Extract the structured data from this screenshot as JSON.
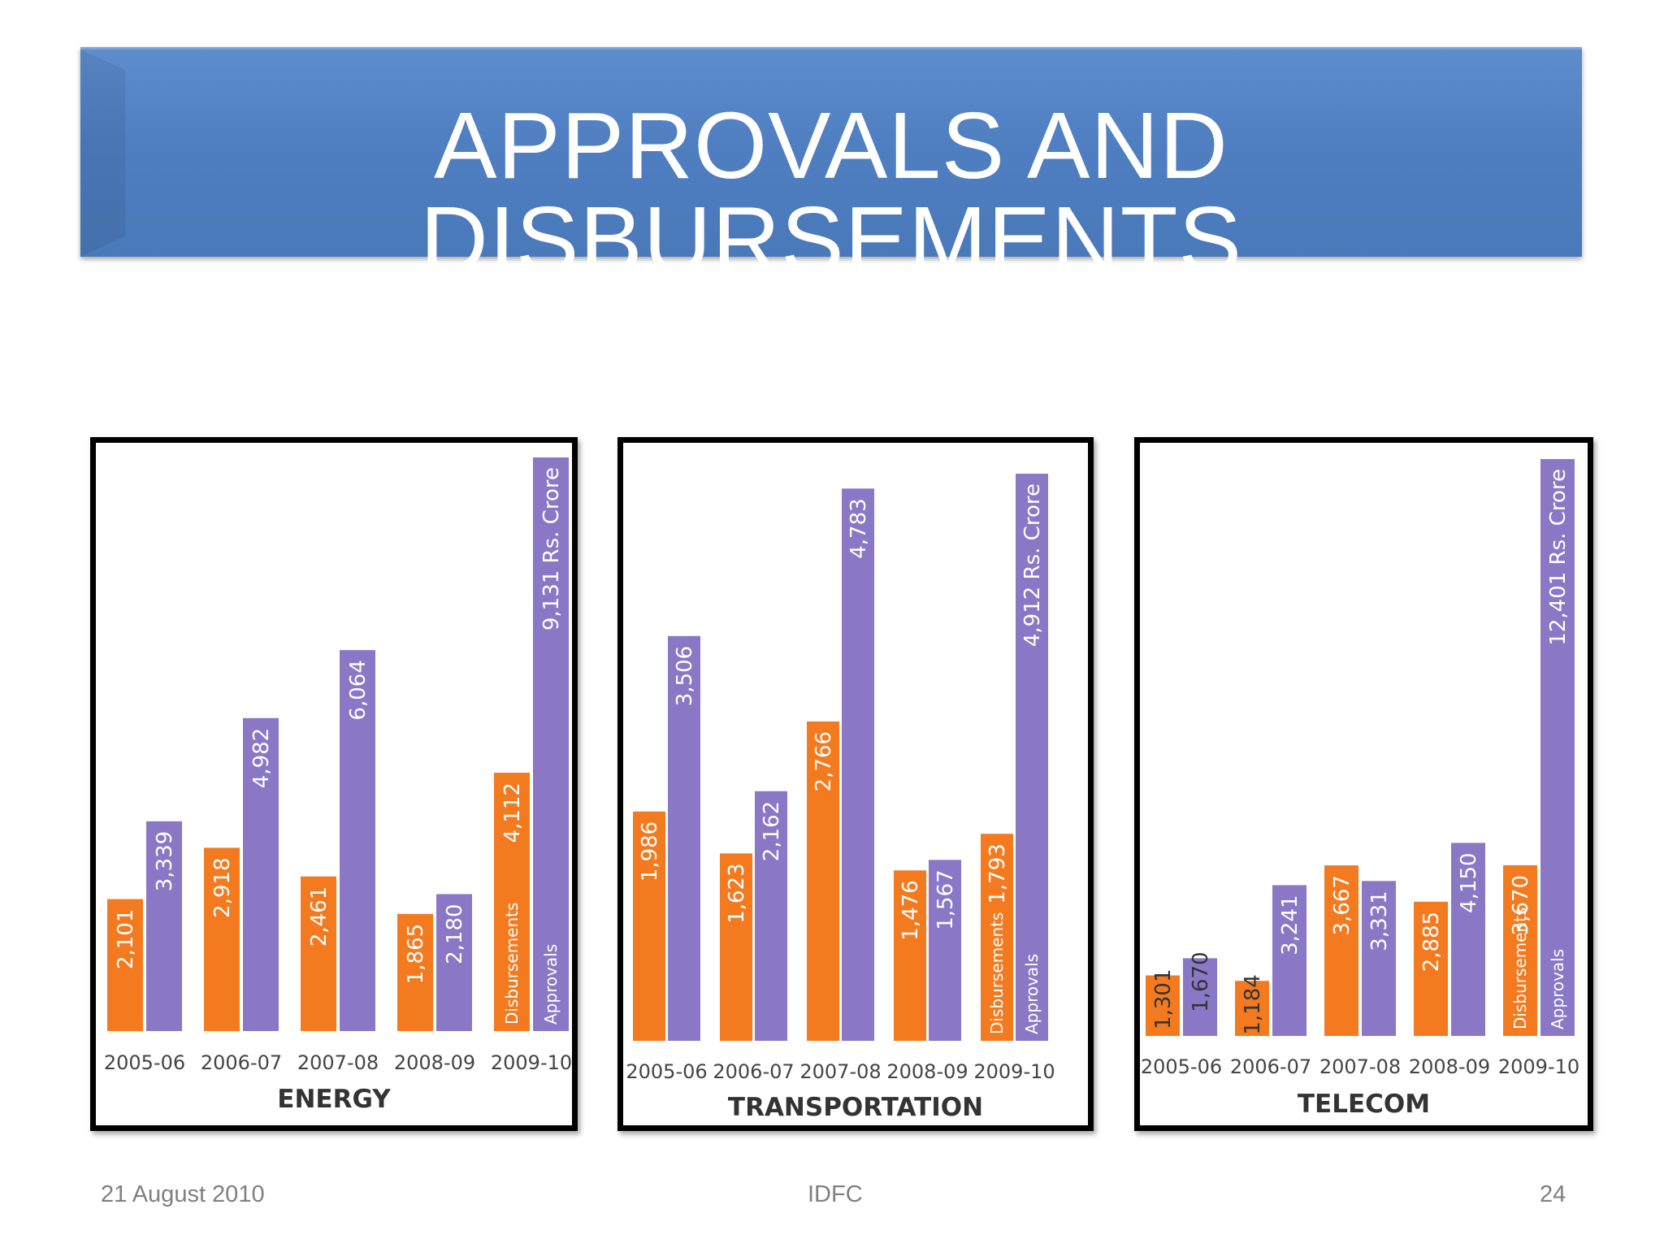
{
  "slide": {
    "title": "APPROVALS AND DISBURSEMENTS",
    "footer_date": "21 August 2010",
    "footer_center": "IDFC",
    "page_number": "24"
  },
  "colors": {
    "disbursements": "#f47a1f",
    "approvals": "#8a78c6",
    "title_bar": "#4f81bd"
  },
  "chart_data": [
    {
      "type": "bar",
      "title": "ENERGY",
      "unit_label": "Rs. Crore",
      "categories": [
        "2005-06",
        "2006-07",
        "2007-08",
        "2008-09",
        "2009-10"
      ],
      "series": [
        {
          "name": "Disbursements",
          "values": [
            2101,
            2918,
            2461,
            1865,
            4112
          ],
          "labels": [
            "2,101",
            "2,918",
            "2,461",
            "1,865",
            "4,112"
          ]
        },
        {
          "name": "Approvals",
          "values": [
            3339,
            4982,
            6064,
            2180,
            9131
          ],
          "labels": [
            "3,339",
            "4,982",
            "6,064",
            "2,180",
            "9,131"
          ]
        }
      ],
      "ylim": [
        0,
        9131
      ]
    },
    {
      "type": "bar",
      "title": "TRANSPORTATION",
      "unit_label": "Rs. Crore",
      "categories": [
        "2005-06",
        "2006-07",
        "2007-08",
        "2008-09",
        "2009-10"
      ],
      "series": [
        {
          "name": "Disbursements",
          "values": [
            1986,
            1623,
            2766,
            1476,
            1793
          ],
          "labels": [
            "1,986",
            "1,623",
            "2,766",
            "1,476",
            "1,793"
          ]
        },
        {
          "name": "Approvals",
          "values": [
            3506,
            2162,
            4783,
            1567,
            4912
          ],
          "labels": [
            "3,506",
            "2,162",
            "4,783",
            "1,567",
            "4,912"
          ]
        }
      ],
      "ylim": [
        0,
        4912
      ]
    },
    {
      "type": "bar",
      "title": "TELECOM",
      "unit_label": "Rs. Crore",
      "categories": [
        "2005-06",
        "2006-07",
        "2007-08",
        "2008-09",
        "2009-10"
      ],
      "series": [
        {
          "name": "Disbursements",
          "values": [
            1301,
            1184,
            3667,
            2885,
            3670
          ],
          "labels": [
            "1,301",
            "1,184",
            "3,667",
            "2,885",
            "3,670"
          ]
        },
        {
          "name": "Approvals",
          "values": [
            1670,
            3241,
            3331,
            4150,
            12401
          ],
          "labels": [
            "1,670",
            "3,241",
            "3,331",
            "4,150",
            "12,401"
          ]
        }
      ],
      "ylim": [
        0,
        12401
      ],
      "note": "bars not drawn to a common scale"
    }
  ]
}
